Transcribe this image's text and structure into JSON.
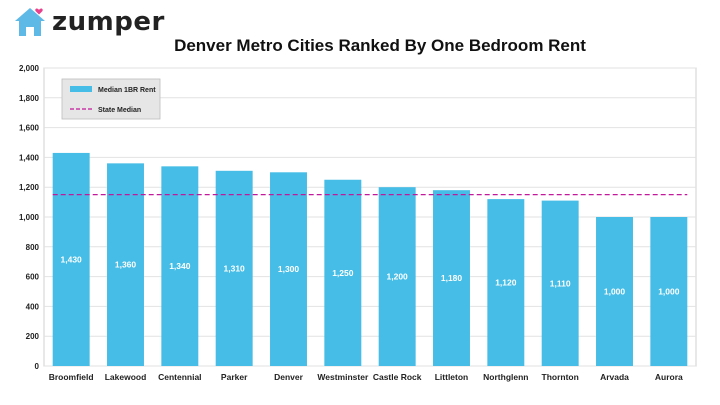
{
  "brand": {
    "name": "zumper",
    "icon": "house-heart-icon",
    "icon_color": "#5fb9e6",
    "heart_color": "#e8408c"
  },
  "chart_data": {
    "type": "bar",
    "title": "Denver Metro Cities Ranked By One Bedroom Rent",
    "xlabel": "",
    "ylabel": "",
    "ylim": [
      0,
      2000
    ],
    "yticks": [
      0,
      200,
      400,
      600,
      800,
      1000,
      1200,
      1400,
      1600,
      1800,
      2000
    ],
    "ytick_labels": [
      "0",
      "200",
      "400",
      "600",
      "800",
      "1,000",
      "1,200",
      "1,400",
      "1,600",
      "1,800",
      "2,000"
    ],
    "categories": [
      "Broomfield",
      "Lakewood",
      "Centennial",
      "Parker",
      "Denver",
      "Westminster",
      "Castle Rock",
      "Littleton",
      "Northglenn",
      "Thornton",
      "Arvada",
      "Aurora"
    ],
    "series": [
      {
        "name": "Median 1BR Rent",
        "values": [
          1430,
          1360,
          1340,
          1310,
          1300,
          1250,
          1200,
          1180,
          1120,
          1110,
          1000,
          1000
        ],
        "value_labels": [
          "1,430",
          "1,360",
          "1,340",
          "1,310",
          "1,300",
          "1,250",
          "1,200",
          "1,180",
          "1,120",
          "1,110",
          "1,000",
          "1,000"
        ],
        "color": "#45bde6"
      }
    ],
    "reference_line": {
      "name": "State Median",
      "value": 1150,
      "color": "#c2189b",
      "style": "dashed"
    },
    "grid": true,
    "legend": "top-left"
  }
}
